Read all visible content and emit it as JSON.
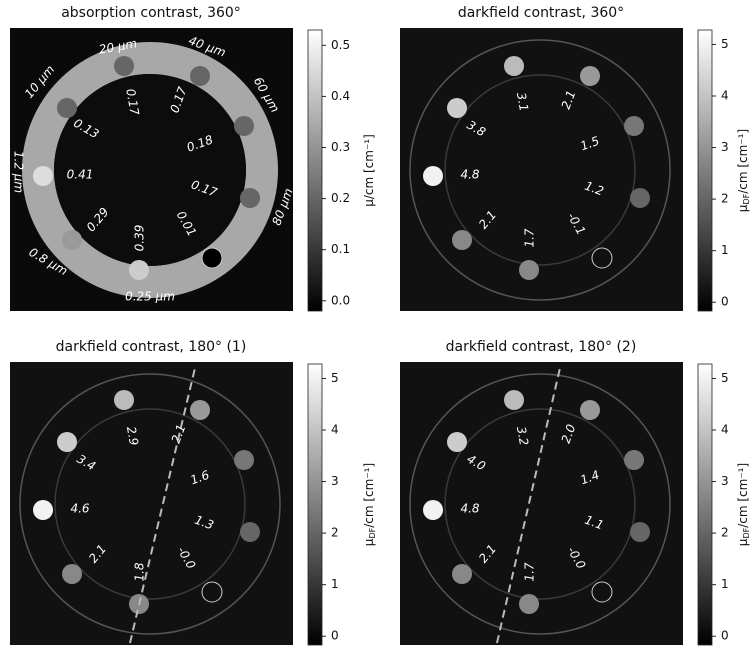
{
  "panels": [
    {
      "title": "absorption contrast, 360°",
      "sample_labels": [
        "20 μm",
        "40 μm",
        "10 μm",
        "60 μm",
        "1.2 μm",
        "80 μm",
        "0.8 μm",
        "0.25 μm"
      ],
      "values": [
        "0.17",
        "0.17",
        "0.13",
        "0.18",
        "0.41",
        "0.17",
        "0.29",
        "0.39",
        "0.01"
      ],
      "colorbar": {
        "label": "μ/cm [cm⁻¹]",
        "lim": [
          -0.02,
          0.53
        ],
        "ticks": [
          {
            "value": 0,
            "label": "0.0"
          },
          {
            "value": 0.1,
            "label": "0.1"
          },
          {
            "value": 0.2,
            "label": "0.2"
          },
          {
            "value": 0.3,
            "label": "0.3"
          },
          {
            "value": 0.4,
            "label": "0.4"
          },
          {
            "value": 0.5,
            "label": "0.5"
          }
        ]
      }
    },
    {
      "title": "darkfield contrast, 360°",
      "values": [
        "3.1",
        "2.1",
        "3.8",
        "1.5",
        "4.8",
        "1.2",
        "2.1",
        "1.7",
        "-0.1"
      ],
      "colorbar": {
        "label": "μ",
        "label_sub": "DF",
        "label_rest": "/cm [cm⁻¹]",
        "lim": [
          -0.17,
          5.28
        ],
        "ticks": [
          0,
          1,
          2,
          3,
          4,
          5
        ]
      }
    },
    {
      "title": "darkfield contrast, 180° (1)",
      "values": [
        "2.9",
        "2.1",
        "3.4",
        "1.6",
        "4.6",
        "1.3",
        "2.1",
        "1.8",
        "-0.0"
      ],
      "colorbar": {
        "label": "μ",
        "label_sub": "DF",
        "label_rest": "/cm [cm⁻¹]",
        "lim": [
          -0.17,
          5.28
        ],
        "ticks": [
          0,
          1,
          2,
          3,
          4,
          5
        ]
      }
    },
    {
      "title": "darkfield contrast, 180° (2)",
      "values": [
        "3.2",
        "2.0",
        "4.0",
        "1.4",
        "4.8",
        "1.1",
        "2.1",
        "1.7",
        "-0.0"
      ],
      "colorbar": {
        "label": "μ",
        "label_sub": "DF",
        "label_rest": "/cm [cm⁻¹]",
        "lim": [
          -0.17,
          5.28
        ],
        "ticks": [
          0,
          1,
          2,
          3,
          4,
          5
        ]
      }
    }
  ]
}
